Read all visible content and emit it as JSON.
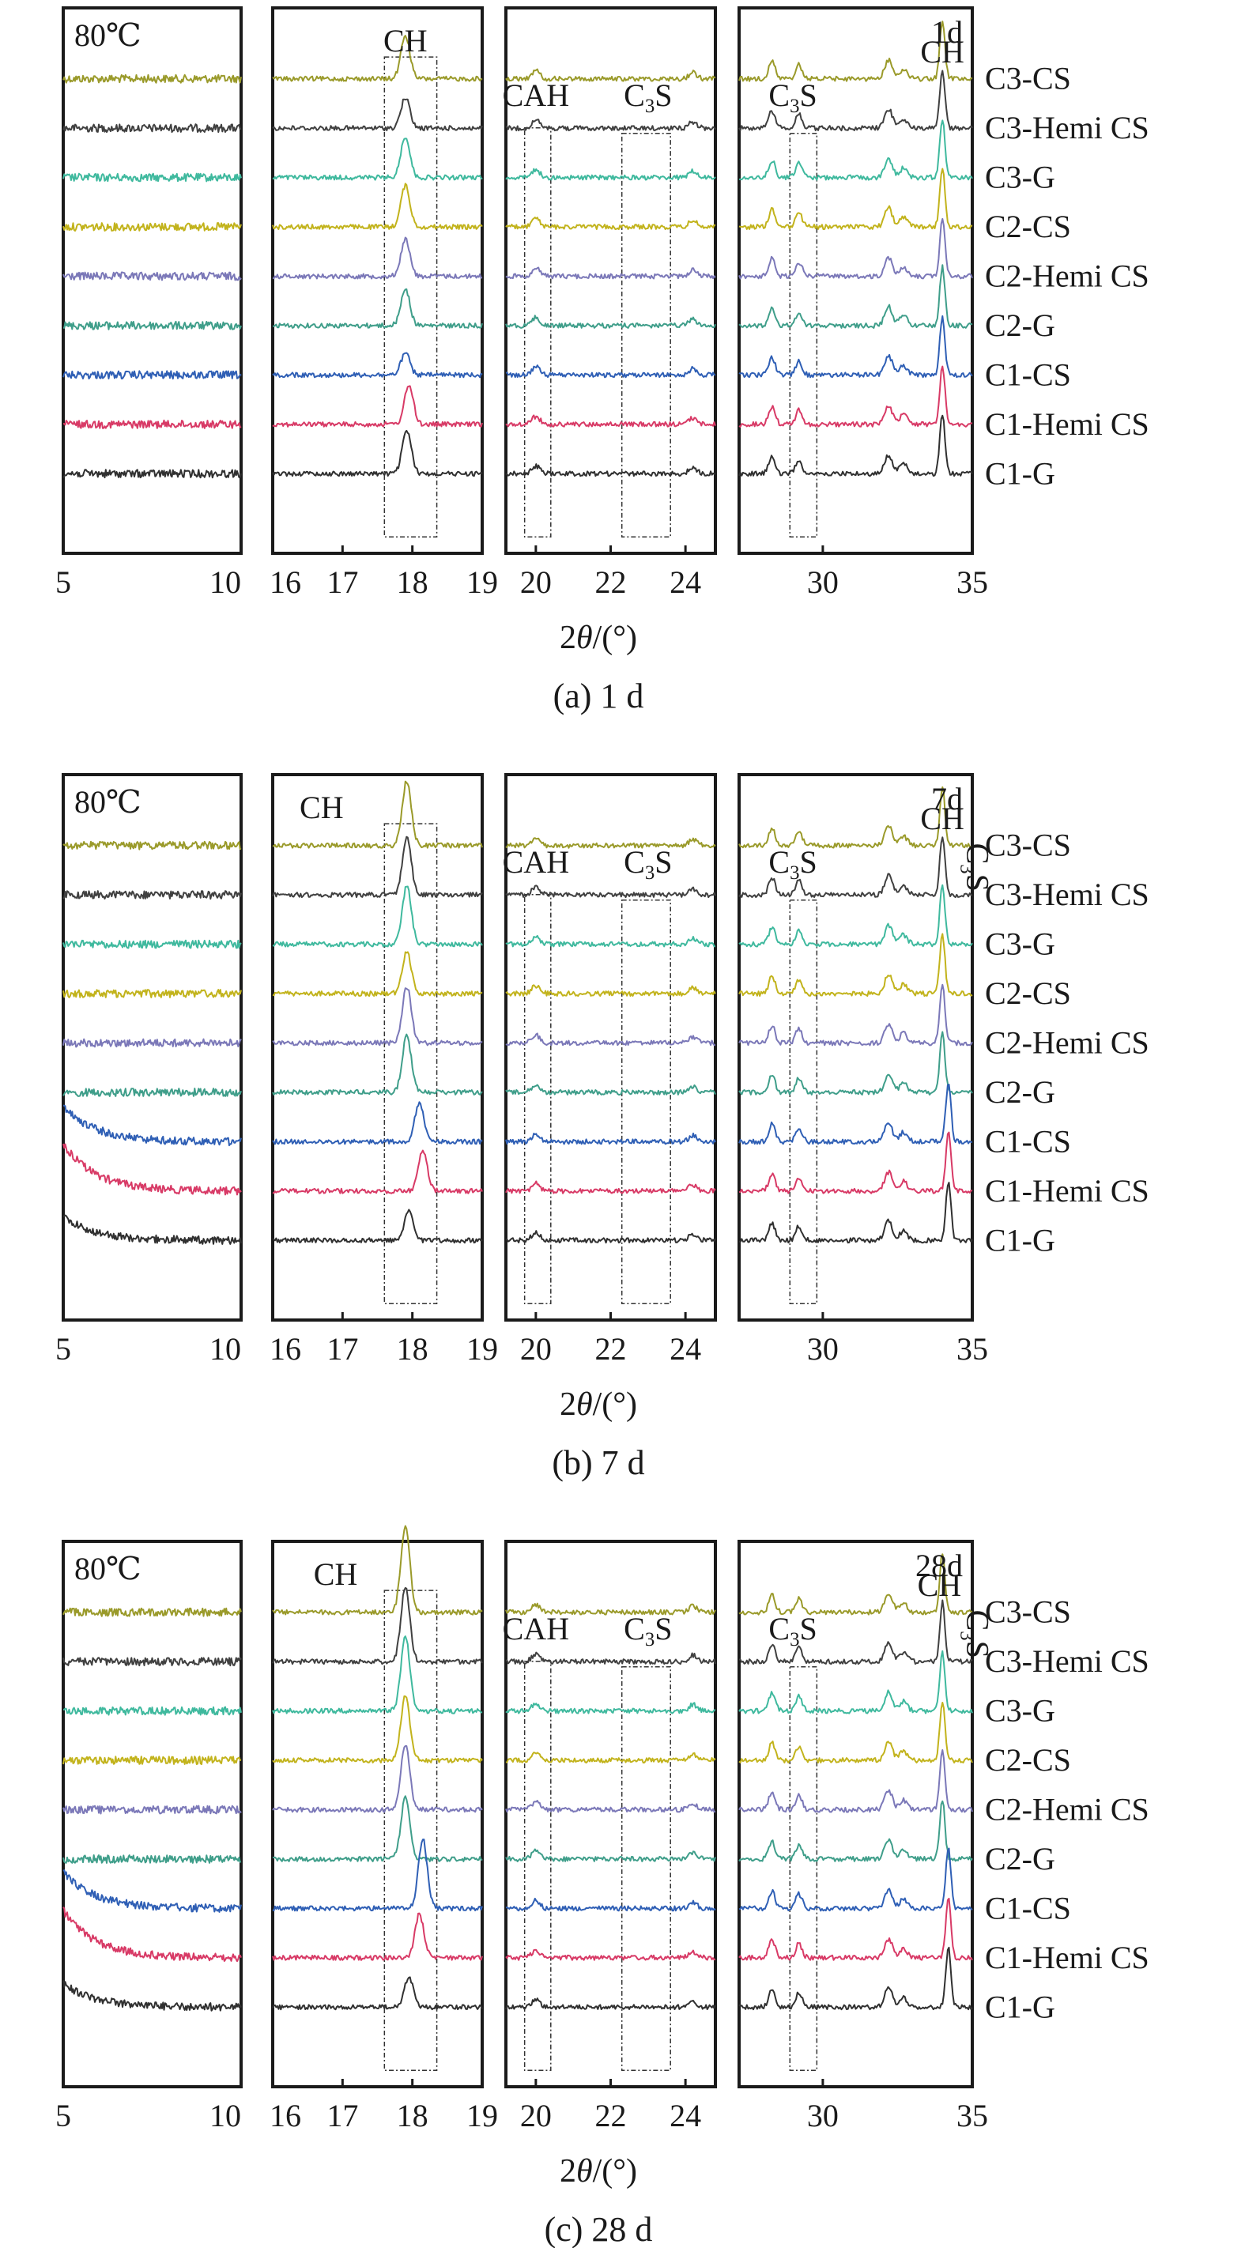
{
  "chart_data": [
    {
      "type": "line",
      "caption": "(a) 1 d",
      "temperature_label": "80℃",
      "age_label": "1d",
      "xlabel": "2θ/(°)",
      "ylabel": "",
      "y_ticks_shown": false,
      "grid": false,
      "series": [
        "C3-CS",
        "C3-Hemi CS",
        "C3-G",
        "C2-CS",
        "C2-Hemi CS",
        "C2-G",
        "C1-CS",
        "C1-Hemi CS",
        "C1-G"
      ],
      "colors": [
        "#9a9a2a",
        "#404040",
        "#3fb99e",
        "#c2b31c",
        "#7b78b8",
        "#3f9e8a",
        "#2f5fb5",
        "#d83a66",
        "#303030"
      ],
      "panels": [
        {
          "xlim": [
            5,
            10
          ],
          "ticks": [
            5,
            10
          ],
          "tick_labels": [
            "5",
            "10"
          ],
          "annotations": []
        },
        {
          "xlim": [
            16,
            19
          ],
          "ticks": [
            16,
            17,
            18,
            19
          ],
          "tick_labels": [
            "16",
            "17",
            "18",
            "19"
          ],
          "annotations": [
            {
              "text": "CH",
              "x": 17.9
            }
          ],
          "peaks": [
            [
              17.9,
              17.9,
              17.9,
              17.9,
              17.9,
              17.9,
              17.9,
              17.95,
              17.92
            ],
            [
              1.0,
              0.7,
              0.95,
              0.95,
              0.85,
              0.85,
              0.5,
              0.9,
              1.0
            ]
          ]
        },
        {
          "xlim": [
            19.2,
            24.8
          ],
          "ticks": [
            20,
            22,
            24
          ],
          "tick_labels": [
            "20",
            "22",
            "24"
          ],
          "annotations": [
            {
              "text": "CAH",
              "x": 20.0
            },
            {
              "text": "C3S",
              "x": 23.0
            }
          ]
        },
        {
          "xlim": [
            27.2,
            35
          ],
          "ticks": [
            30,
            35
          ],
          "tick_labels": [
            "30",
            "35"
          ],
          "annotations": [
            {
              "text": "C3S",
              "x": 29.0
            },
            {
              "text": "CH",
              "x": 34.0
            }
          ]
        }
      ]
    },
    {
      "type": "line",
      "caption": "(b) 7 d",
      "temperature_label": "80℃",
      "age_label": "7d",
      "xlabel": "2θ/(°)",
      "ylabel": "",
      "y_ticks_shown": false,
      "grid": false,
      "series": [
        "C3-CS",
        "C3-Hemi CS",
        "C3-G",
        "C2-CS",
        "C2-Hemi CS",
        "C2-G",
        "C1-CS",
        "C1-Hemi CS",
        "C1-G"
      ],
      "colors": [
        "#9a9a2a",
        "#404040",
        "#3fb99e",
        "#c2b31c",
        "#7b78b8",
        "#3f9e8a",
        "#2f5fb5",
        "#d83a66",
        "#303030"
      ],
      "panels": [
        {
          "xlim": [
            5,
            10
          ],
          "ticks": [
            5,
            10
          ],
          "tick_labels": [
            "5",
            "10"
          ],
          "annotations": []
        },
        {
          "xlim": [
            16,
            19
          ],
          "ticks": [
            16,
            17,
            18,
            19
          ],
          "tick_labels": [
            "16",
            "17",
            "18",
            "19"
          ],
          "annotations": [
            {
              "text": "CH",
              "x": 16.7
            }
          ],
          "peaks": [
            [
              17.92,
              17.92,
              17.92,
              17.92,
              17.92,
              17.92,
              18.1,
              18.15,
              17.95
            ],
            [
              1.5,
              1.3,
              1.35,
              0.95,
              1.3,
              1.3,
              0.9,
              0.95,
              0.7
            ]
          ]
        },
        {
          "xlim": [
            19.2,
            24.8
          ],
          "ticks": [
            20,
            22,
            24
          ],
          "tick_labels": [
            "20",
            "22",
            "24"
          ],
          "annotations": [
            {
              "text": "CAH",
              "x": 20.0
            },
            {
              "text": "C3S",
              "x": 23.0
            }
          ]
        },
        {
          "xlim": [
            27.2,
            35
          ],
          "ticks": [
            30,
            35
          ],
          "tick_labels": [
            "30",
            "35"
          ],
          "annotations": [
            {
              "text": "C3S",
              "x": 29.0
            },
            {
              "text": "CH",
              "x": 34.0
            },
            {
              "text": "C3S",
              "x": 34.4,
              "rotated": true
            }
          ]
        }
      ]
    },
    {
      "type": "line",
      "caption": "(c) 28 d",
      "temperature_label": "80℃",
      "age_label": "28d",
      "xlabel": "2θ/(°)",
      "ylabel": "",
      "y_ticks_shown": false,
      "grid": false,
      "series": [
        "C3-CS",
        "C3-Hemi CS",
        "C3-G",
        "C2-CS",
        "C2-Hemi CS",
        "C2-G",
        "C1-CS",
        "C1-Hemi CS",
        "C1-G"
      ],
      "colors": [
        "#9a9a2a",
        "#404040",
        "#3fb99e",
        "#c2b31c",
        "#7b78b8",
        "#3f9e8a",
        "#2f5fb5",
        "#d83a66",
        "#303030"
      ],
      "panels": [
        {
          "xlim": [
            5,
            10
          ],
          "ticks": [
            5,
            10
          ],
          "tick_labels": [
            "5",
            "10"
          ],
          "annotations": []
        },
        {
          "xlim": [
            16,
            19
          ],
          "ticks": [
            16,
            17,
            18,
            19
          ],
          "tick_labels": [
            "16",
            "17",
            "18",
            "19"
          ],
          "annotations": [
            {
              "text": "CH",
              "x": 16.9
            }
          ],
          "peaks": [
            [
              17.9,
              17.9,
              17.9,
              17.9,
              17.9,
              17.9,
              18.15,
              18.1,
              17.95
            ],
            [
              2.0,
              1.7,
              1.7,
              1.5,
              1.5,
              1.4,
              1.6,
              1.0,
              0.7
            ]
          ]
        },
        {
          "xlim": [
            19.2,
            24.8
          ],
          "ticks": [
            20,
            22,
            24
          ],
          "tick_labels": [
            "20",
            "22",
            "24"
          ],
          "annotations": [
            {
              "text": "CAH",
              "x": 20.0
            },
            {
              "text": "C3S",
              "x": 23.0
            }
          ]
        },
        {
          "xlim": [
            27.2,
            35
          ],
          "ticks": [
            30,
            35
          ],
          "tick_labels": [
            "30",
            "35"
          ],
          "annotations": [
            {
              "text": "C3S",
              "x": 29.0
            },
            {
              "text": "CH",
              "x": 33.9
            },
            {
              "text": "C3S",
              "x": 34.4,
              "rotated": true
            }
          ]
        }
      ]
    }
  ]
}
